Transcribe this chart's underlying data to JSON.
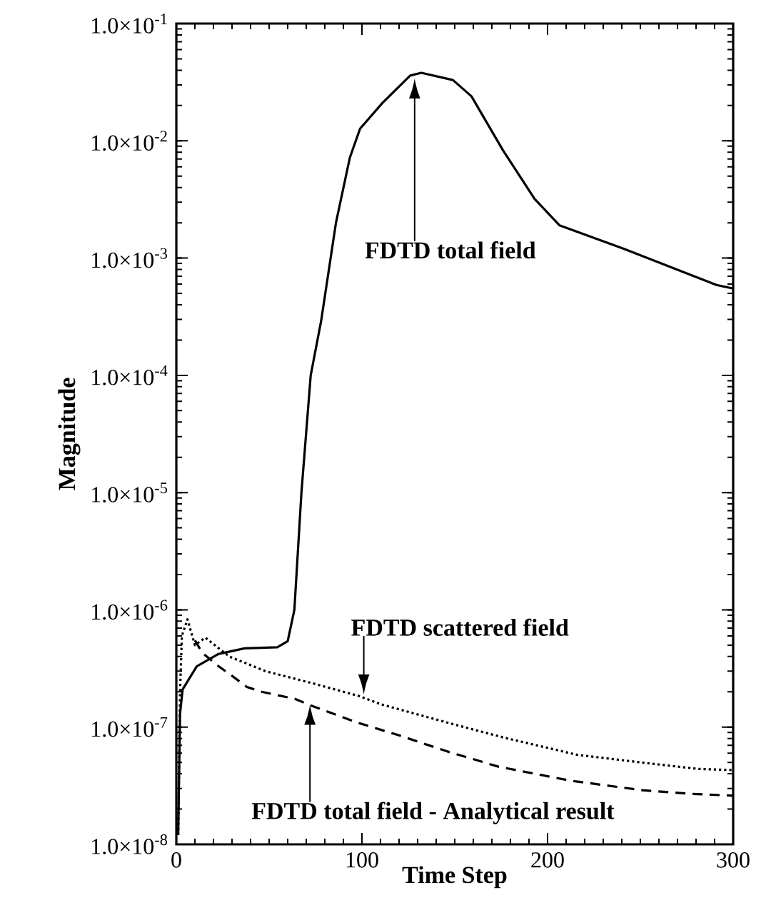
{
  "chart_data": {
    "type": "line",
    "xlabel": "Time Step",
    "ylabel": "Magnitude",
    "log": "y",
    "xlim": [
      0,
      300
    ],
    "xticks": [
      0,
      100,
      200,
      300
    ],
    "ylim": [
      1e-08,
      0.1
    ],
    "yticks": [
      {
        "value": 1e-08,
        "label": "1.0×10$^{-8}$"
      },
      {
        "value": 1e-07,
        "label": "1.0×10$^{-7}$"
      },
      {
        "value": 1e-06,
        "label": "1.0×10$^{-6}$"
      },
      {
        "value": 1e-05,
        "label": "1.0×10$^{-5}$"
      },
      {
        "value": 0.0001,
        "label": "1.0×10$^{-4}$"
      },
      {
        "value": 0.001,
        "label": "1.0×10$^{-3}$"
      },
      {
        "value": 0.01,
        "label": "1.0×10$^{-2}$"
      },
      {
        "value": 0.1,
        "label": "1.0×10$^{-1}$"
      }
    ],
    "series": [
      {
        "color": "#000000",
        "line_style": "solid",
        "x": [
          1,
          2,
          3.4,
          11,
          22.6,
          36.8,
          54.4,
          60,
          63.6,
          67.4,
          72.4,
          78,
          86,
          93.5,
          99,
          111,
          126,
          132,
          149,
          159,
          176,
          193,
          206.5,
          241,
          291,
          300
        ],
        "values": [
          1.2e-08,
          1.3e-07,
          2.1e-07,
          3.3e-07,
          4.2e-07,
          4.7e-07,
          4.8e-07,
          5.4e-07,
          1e-06,
          1e-05,
          0.0001,
          0.00029,
          0.002,
          0.0072,
          0.0127,
          0.021,
          0.036,
          0.038,
          0.033,
          0.024,
          0.0083,
          0.0032,
          0.0019,
          0.0012,
          0.00059,
          0.00055
        ]
      },
      {
        "color": "#000000",
        "line_style": "dotted",
        "x": [
          1,
          2,
          3,
          6,
          10,
          15.6,
          28.5,
          48,
          74,
          98,
          110.5,
          150,
          177,
          216,
          255,
          281,
          300
        ],
        "values": [
          1.2e-08,
          2e-07,
          6e-07,
          8.3e-07,
          5e-07,
          5.8e-07,
          4e-07,
          3e-07,
          2.35e-07,
          1.85e-07,
          1.56e-07,
          1.05e-07,
          8.1e-08,
          5.8e-08,
          4.9e-08,
          4.4e-08,
          4.3e-08
        ]
      },
      {
        "color": "#000000",
        "line_style": "dashed",
        "x": [
          10,
          14,
          22.8,
          30.5,
          38,
          46,
          64,
          71.5,
          97,
          120,
          146,
          173.5,
          212,
          250.8,
          277,
          300
        ],
        "values": [
          5.5e-07,
          4.3e-07,
          3.3e-07,
          2.7e-07,
          2.2e-07,
          2e-07,
          1.74e-07,
          1.55e-07,
          1.1e-07,
          8.5e-08,
          6.2e-08,
          4.6e-08,
          3.5e-08,
          2.9e-08,
          2.7e-08,
          2.6e-08
        ]
      }
    ],
    "annotations": [
      "FDTD total field",
      {
        "text": "FDTD scattered field",
        "x": 101,
        "y": 1.9e-07
      },
      "FDTD total field - Analytical result"
    ]
  }
}
